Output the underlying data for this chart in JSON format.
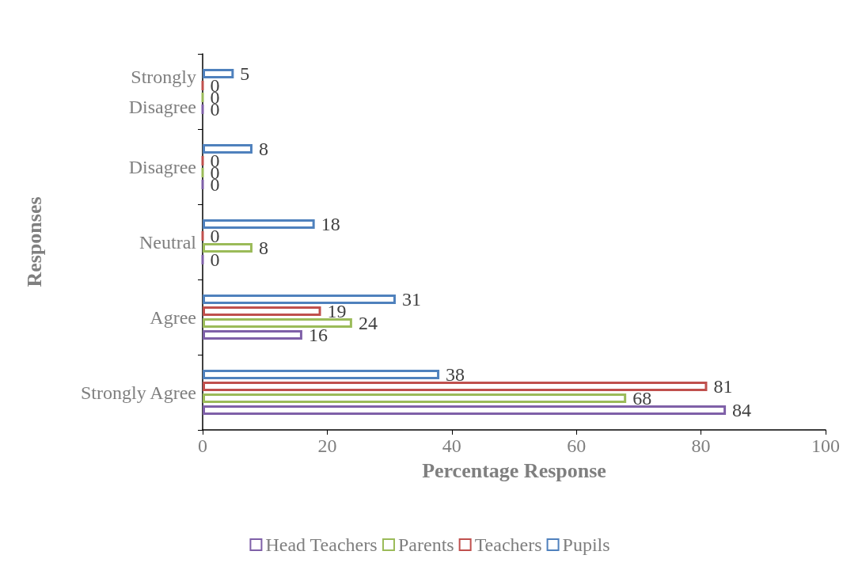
{
  "chart_data": {
    "type": "bar",
    "orientation": "horizontal",
    "xlabel": "Percentage Response",
    "ylabel": "Responses",
    "categories": [
      "Strongly Disagree",
      "Disagree",
      "Neutral",
      "Agree",
      "Strongly Agree"
    ],
    "series": [
      {
        "name": "Head Teachers",
        "color": "#7f60a8",
        "values": [
          0,
          0,
          0,
          16,
          84
        ]
      },
      {
        "name": "Parents",
        "color": "#9bbb59",
        "values": [
          0,
          0,
          8,
          24,
          68
        ]
      },
      {
        "name": "Teachers",
        "color": "#c0504d",
        "values": [
          0,
          0,
          0,
          19,
          81
        ]
      },
      {
        "name": "Pupils",
        "color": "#4f81bd",
        "values": [
          5,
          8,
          18,
          31,
          38
        ]
      }
    ],
    "xlim": [
      0,
      100
    ],
    "xticks": [
      0,
      20,
      40,
      60,
      80,
      100
    ],
    "grid": false,
    "legend": "bottom",
    "data_labels": true
  }
}
